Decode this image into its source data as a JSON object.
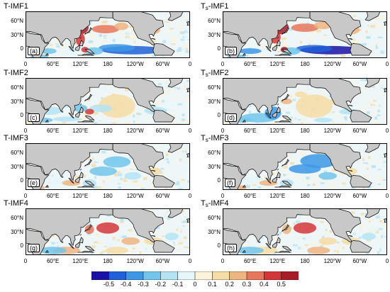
{
  "panels": [
    {
      "id": "T-IMF1",
      "title_main": "T",
      "title_sub": "",
      "title_suffix": "-IMF1",
      "label": "(a)"
    },
    {
      "id": "Ts-IMF1",
      "title_main": "T",
      "title_sub": "s",
      "title_suffix": "-IMF1",
      "label": "(b)"
    },
    {
      "id": "T-IMF2",
      "title_main": "T",
      "title_sub": "",
      "title_suffix": "-IMF2",
      "label": "(c)"
    },
    {
      "id": "Ts-IMF2",
      "title_main": "T",
      "title_sub": "s",
      "title_suffix": "-IMF2",
      "label": "(d)"
    },
    {
      "id": "T-IMF3",
      "title_main": "T",
      "title_sub": "",
      "title_suffix": "-IMF3",
      "label": "(e)"
    },
    {
      "id": "Ts-IMF3",
      "title_main": "T",
      "title_sub": "s",
      "title_suffix": "-IMF3",
      "label": "(f)"
    },
    {
      "id": "T-IMF4",
      "title_main": "T",
      "title_sub": "",
      "title_suffix": "-IMF4",
      "label": "(g)"
    },
    {
      "id": "Ts-IMF4",
      "title_main": "T",
      "title_sub": "s",
      "title_suffix": "-IMF4",
      "label": "(h)"
    }
  ],
  "axes": {
    "lat_ticks": [
      "60°N",
      "30°N",
      "0"
    ],
    "lon_ticks": [
      "0",
      "60°E",
      "120°E",
      "180",
      "120°W",
      "60°W",
      "0"
    ]
  },
  "colorbar": {
    "ticks": [
      "-0.5",
      "-0.4",
      "-0.3",
      "-0.2",
      "-0.1",
      "0",
      "0.1",
      "0.2",
      "0.3",
      "0.4",
      "0.5"
    ],
    "colors": [
      "#1a12a8",
      "#2060d8",
      "#3c98e6",
      "#72c6ec",
      "#b4e4f4",
      "#e6f6fb",
      "#fbf4da",
      "#f6dca6",
      "#eeb481",
      "#e8765a",
      "#d3373a",
      "#a81c28"
    ]
  },
  "colors": {
    "land": "#c8c8c8",
    "ocean_neutral": "#eef6f8"
  }
}
